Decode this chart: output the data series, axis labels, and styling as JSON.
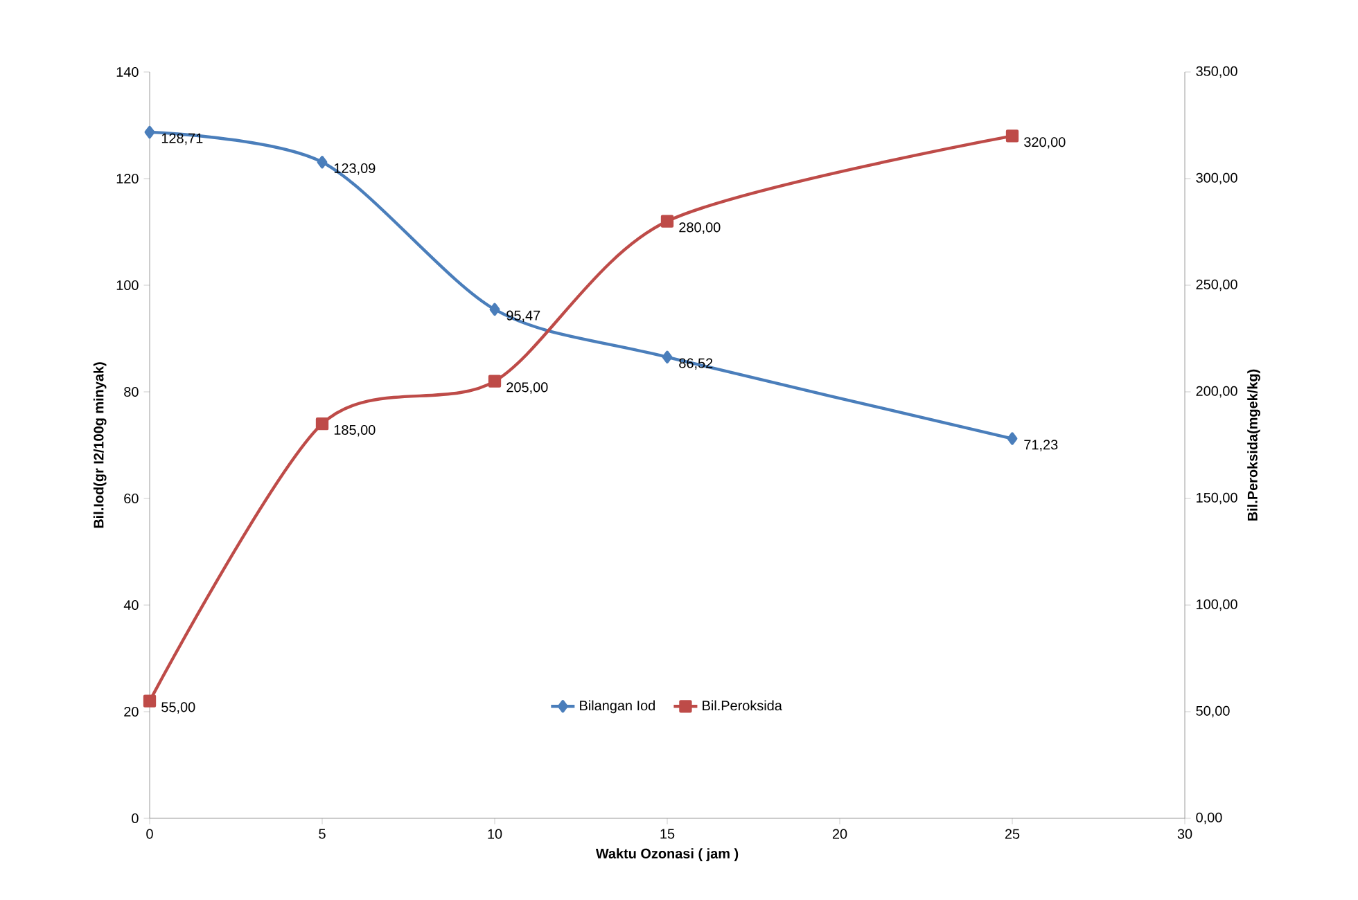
{
  "chart_data": {
    "type": "line",
    "xlabel": "Waktu Ozonasi ( jam )",
    "ylabel": "Bil.Iod(gr I2/100g minyak)",
    "y2label": "Bil.Peroksida(mgek/kg)",
    "x": [
      0,
      5,
      10,
      15,
      25
    ],
    "series": [
      {
        "name": "Bilangan Iod",
        "color": "#4a7ebb",
        "marker": "diamond",
        "values": [
          128.71,
          123.09,
          95.47,
          86.52,
          71.23
        ],
        "value_labels": [
          "128,71",
          "123,09",
          "95,47",
          "86,52",
          "71,23"
        ]
      },
      {
        "name": "Bil.Peroksida",
        "color": "#be4b48",
        "marker": "square",
        "axis": "y2",
        "values": [
          55,
          185,
          205,
          280,
          320
        ],
        "value_labels": [
          "55,00",
          "185,00",
          "205,00",
          "280,00",
          "320,00"
        ]
      }
    ],
    "xlim": [
      0,
      30
    ],
    "xticks": [
      0,
      5,
      10,
      15,
      20,
      25,
      30
    ],
    "ylim": [
      0,
      140
    ],
    "yticks": [
      0,
      20,
      40,
      60,
      80,
      100,
      120,
      140
    ],
    "y2lim": [
      0,
      350
    ],
    "y2ticks": [
      {
        "value": 0,
        "label": "0,00"
      },
      {
        "value": 50,
        "label": "50,00"
      },
      {
        "value": 100,
        "label": "100,00"
      },
      {
        "value": 150,
        "label": "150,00"
      },
      {
        "value": 200,
        "label": "200,00"
      },
      {
        "value": 250,
        "label": "250,00"
      },
      {
        "value": 300,
        "label": "300,00"
      },
      {
        "value": 350,
        "label": "350,00"
      }
    ],
    "legend": "bottom",
    "line_style": "solid"
  }
}
